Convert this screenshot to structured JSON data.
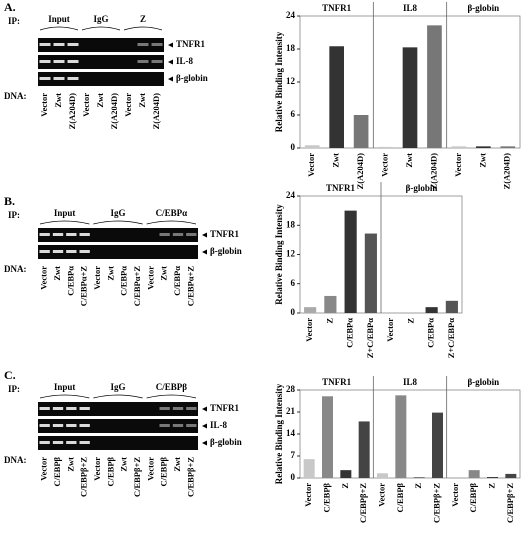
{
  "chart_data": [
    {
      "type": "bar",
      "ylabel": "Relative Binding Intensity",
      "groups": [
        "TNFR1",
        "IL8",
        "β-globin"
      ],
      "categories": [
        "Vector",
        "Zwt",
        "Z(A204D)",
        "Vector",
        "Zwt",
        "Z(A204D)",
        "Vector",
        "Zwt",
        "Z(A204D)"
      ],
      "values": [
        0.5,
        18.5,
        6,
        0.2,
        18.3,
        22.3,
        0.3,
        0.3,
        0.3
      ],
      "colors": [
        "#c8c8c8",
        "#333333",
        "#777777",
        "#c8c8c8",
        "#333333",
        "#777777",
        "#c8c8c8",
        "#333333",
        "#777777"
      ],
      "ylim": [
        0,
        24
      ],
      "yticks": [
        0,
        6,
        12,
        18,
        24
      ]
    },
    {
      "type": "bar",
      "ylabel": "Relative Binding Intensity",
      "groups": [
        "TNFR1",
        "β-globin"
      ],
      "categories": [
        "Vector",
        "Z",
        "C/EBPα",
        "Z+C/EBPα",
        "Vector",
        "Z",
        "C/EBPα",
        "Z+C/EBPα"
      ],
      "values": [
        1.2,
        3.5,
        21,
        16.3,
        0,
        0,
        1.2,
        2.5
      ],
      "colors": [
        "#aaaaaa",
        "#888888",
        "#333333",
        "#555555",
        "#aaaaaa",
        "#888888",
        "#333333",
        "#555555"
      ],
      "ylim": [
        0,
        24
      ],
      "yticks": [
        0,
        6,
        12,
        18,
        24
      ]
    },
    {
      "type": "bar",
      "ylabel": "Relative Binding Intensity",
      "groups": [
        "TNFR1",
        "IL8",
        "β-globin"
      ],
      "categories": [
        "Vector",
        "C/EBPβ",
        "Z",
        "C/EBPβ+Z",
        "Vector",
        "C/EBPβ",
        "Z",
        "C/EBPβ+Z",
        "Vector",
        "C/EBPβ",
        "Z",
        "C/EBPβ+Z"
      ],
      "values": [
        6,
        26,
        2.5,
        18,
        1.5,
        26.3,
        0.2,
        20.8,
        0.3,
        2.5,
        0.3,
        1.3
      ],
      "colors": [
        "#c8c8c8",
        "#888888",
        "#333333",
        "#444444",
        "#c8c8c8",
        "#888888",
        "#333333",
        "#444444",
        "#c8c8c8",
        "#888888",
        "#333333",
        "#444444"
      ],
      "ylim": [
        0,
        28
      ],
      "yticks": [
        0,
        7,
        14,
        21,
        28
      ]
    }
  ],
  "gels": [
    {
      "panel": "A.",
      "ip_label": "IP:",
      "ip_groups": [
        "Input",
        "IgG",
        "Z"
      ],
      "bands": [
        "TNFR1",
        "IL-8",
        "β-globin"
      ],
      "dna_label": "DNA:",
      "lanes": [
        "Vector",
        "Zwt",
        "Z(A204D)",
        "Vector",
        "Zwt",
        "Z(A204D)",
        "Vector",
        "Zwt",
        "Z(A204D)"
      ]
    },
    {
      "panel": "B.",
      "ip_label": "IP:",
      "ip_groups": [
        "Input",
        "IgG",
        "C/EBPα"
      ],
      "bands": [
        "TNFR1",
        "β-globin"
      ],
      "dna_label": "DNA:",
      "lanes": [
        "Vector",
        "Zwt",
        "C/EBPα",
        "C/EBPα+Z",
        "Vector",
        "Zwt",
        "C/EBPα",
        "C/EBPα+Z",
        "Vector",
        "Zwt",
        "C/EBPα",
        "C/EBPα+Z"
      ]
    },
    {
      "panel": "C.",
      "ip_label": "IP:",
      "ip_groups": [
        "Input",
        "IgG",
        "C/EBPβ"
      ],
      "bands": [
        "TNFR1",
        "IL-8",
        "β-globin"
      ],
      "dna_label": "DNA:",
      "lanes": [
        "Vector",
        "C/EBPβ",
        "Zwt",
        "C/EBPβ+Z",
        "Vector",
        "C/EBPβ",
        "Zwt",
        "C/EBPβ+Z",
        "Vector",
        "C/EBPβ",
        "Zwt",
        "C/EBPβ+Z"
      ]
    }
  ]
}
